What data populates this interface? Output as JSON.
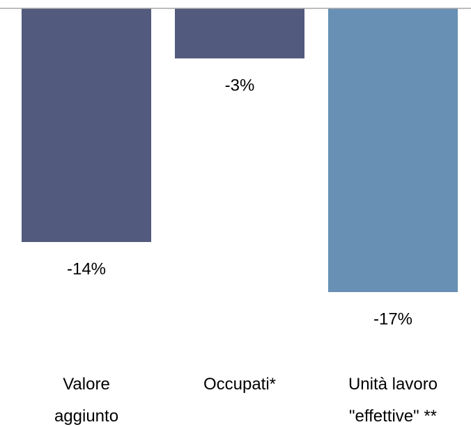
{
  "chart_data": {
    "type": "bar",
    "categories": [
      "Valore\naggiunto",
      "Occupati*",
      "Unità lavoro\n\"effettive\" **"
    ],
    "values": [
      -14,
      -3,
      -17
    ],
    "value_labels": [
      "-14%",
      "-3%",
      "-17%"
    ],
    "colors": [
      "#525a7d",
      "#525a7d",
      "#6790b4"
    ],
    "ylim": [
      -20,
      0
    ]
  }
}
